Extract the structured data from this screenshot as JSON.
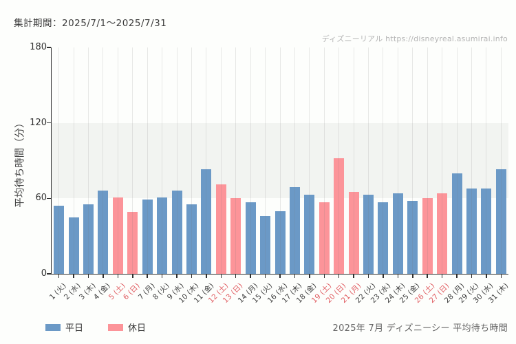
{
  "header": {
    "period_label": "集計期間：2025/7/1～2025/7/31"
  },
  "watermark": {
    "text": "ディズニーリアル https://disneyreal.asumirai.info"
  },
  "footer": {
    "caption": "2025年 7月 ディズニーシー 平均待ち時間"
  },
  "legend": [
    {
      "label": "平日",
      "color": "#6b99c6",
      "type": "weekday"
    },
    {
      "label": "休日",
      "color": "#fc9499",
      "type": "holiday"
    }
  ],
  "chart_data": {
    "type": "bar",
    "title": "2025年 7月 ディズニーシー 平均待ち時間",
    "xlabel": "",
    "ylabel": "平均待ち時間（分）",
    "ylim": [
      0,
      180
    ],
    "yticks": [
      0,
      60,
      120,
      180
    ],
    "shaded_band": {
      "from": 60,
      "to": 120,
      "color": "#f2f4f1"
    },
    "grid": "vertical-per-day",
    "legend_position": "bottom-left",
    "categories": [
      "1 (火)",
      "2 (水)",
      "3 (木)",
      "4 (金)",
      "5 (土)",
      "6 (日)",
      "7 (月)",
      "8 (火)",
      "9 (水)",
      "10 (木)",
      "11 (金)",
      "12 (土)",
      "13 (日)",
      "14 (月)",
      "15 (火)",
      "16 (水)",
      "17 (木)",
      "18 (金)",
      "19 (土)",
      "20 (日)",
      "21 (月)",
      "22 (火)",
      "23 (水)",
      "24 (木)",
      "25 (金)",
      "26 (土)",
      "27 (日)",
      "28 (月)",
      "29 (火)",
      "30 (水)",
      "31 (木)"
    ],
    "values": [
      54,
      45,
      55,
      66,
      61,
      49,
      59,
      61,
      66,
      55,
      83,
      71,
      60,
      57,
      46,
      50,
      69,
      63,
      57,
      92,
      65,
      63,
      57,
      64,
      58,
      60,
      64,
      80,
      68,
      68,
      83
    ],
    "day_types": [
      "weekday",
      "weekday",
      "weekday",
      "weekday",
      "holiday",
      "holiday",
      "weekday",
      "weekday",
      "weekday",
      "weekday",
      "weekday",
      "holiday",
      "holiday",
      "weekday",
      "weekday",
      "weekday",
      "weekday",
      "weekday",
      "holiday",
      "holiday",
      "holiday",
      "weekday",
      "weekday",
      "weekday",
      "weekday",
      "holiday",
      "holiday",
      "weekday",
      "weekday",
      "weekday",
      "weekday"
    ],
    "series_colors": {
      "weekday": "#6b99c6",
      "holiday": "#fc9499"
    },
    "tick_label_colors": {
      "weekday": "#3c3c3c",
      "holiday": "#e05a5f"
    }
  }
}
